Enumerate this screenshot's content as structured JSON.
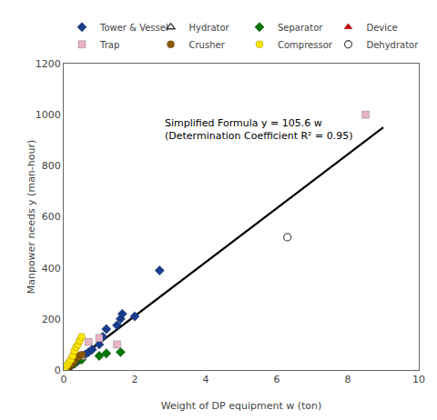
{
  "chart_data": {
    "type": "scatter",
    "annotation": "Simplified Formula y = 105.6 w\n(Determination Coefficient R² = 0.95)",
    "xlabel": "Weight of DP equipment w (ton)",
    "ylabel": "Manpower needs y (man-hour)",
    "xlim": [
      0,
      10
    ],
    "ylim": [
      0,
      1200
    ],
    "xticks": [
      0,
      2,
      4,
      6,
      8,
      10
    ],
    "yticks": [
      0,
      200,
      400,
      600,
      800,
      1000,
      1200
    ],
    "grid": false,
    "legend": "top",
    "series": [
      {
        "type": "line",
        "color": "black",
        "x": [
          0,
          9.0
        ],
        "values": [
          0,
          950.4
        ]
      },
      {
        "name": "Tower & Vessel",
        "type": "scatter",
        "color": "#1a3d8f",
        "marker": "diamond",
        "x": [
          0.05,
          0.1,
          0.15,
          0.2,
          0.3,
          0.4,
          0.5,
          0.6,
          0.7,
          0.8,
          1.0,
          1.1,
          1.2,
          1.5,
          1.6,
          1.65,
          2.0,
          2.7
        ],
        "values": [
          5,
          10,
          15,
          18,
          25,
          35,
          50,
          60,
          70,
          80,
          100,
          130,
          160,
          175,
          200,
          220,
          210,
          390
        ]
      },
      {
        "name": "Hydrator",
        "type": "scatter",
        "color": "#333333",
        "marker": "triangle-up-open",
        "x": [
          0.05,
          0.1
        ],
        "values": [
          8,
          12
        ]
      },
      {
        "name": "Separator",
        "type": "scatter",
        "color": "#007700",
        "marker": "diamond",
        "x": [
          0.2,
          0.3,
          0.5,
          1.0,
          1.2,
          1.6
        ],
        "values": [
          15,
          25,
          40,
          55,
          65,
          70
        ]
      },
      {
        "name": "Device",
        "type": "scatter",
        "color": "#cc0000",
        "marker": "triangle-up",
        "x": [
          0.03,
          0.06,
          0.1,
          0.12
        ],
        "values": [
          3,
          5,
          8,
          10
        ]
      },
      {
        "name": "Trap",
        "type": "scatter",
        "color": "#e8b4c8",
        "marker": "square",
        "x": [
          0.5,
          0.7,
          1.0,
          1.5,
          8.5
        ],
        "values": [
          55,
          110,
          125,
          100,
          1000
        ]
      },
      {
        "name": "Crusher",
        "type": "scatter",
        "color": "#8B5A00",
        "marker": "circle",
        "x": [
          0.08,
          0.12,
          0.15,
          0.2,
          0.25,
          0.3,
          0.4,
          0.5
        ],
        "values": [
          8,
          12,
          15,
          20,
          25,
          35,
          50,
          60
        ]
      },
      {
        "name": "Compressor",
        "type": "scatter",
        "color": "#FFE600",
        "marker": "circle",
        "x": [
          0.05,
          0.1,
          0.15,
          0.2,
          0.25,
          0.3,
          0.35,
          0.4,
          0.45,
          0.5
        ],
        "values": [
          10,
          20,
          30,
          40,
          55,
          75,
          90,
          100,
          115,
          130
        ]
      },
      {
        "name": "Dehydrator",
        "type": "scatter",
        "color": "#555555",
        "marker": "circle-open",
        "x": [
          6.3
        ],
        "values": [
          520
        ]
      }
    ]
  }
}
